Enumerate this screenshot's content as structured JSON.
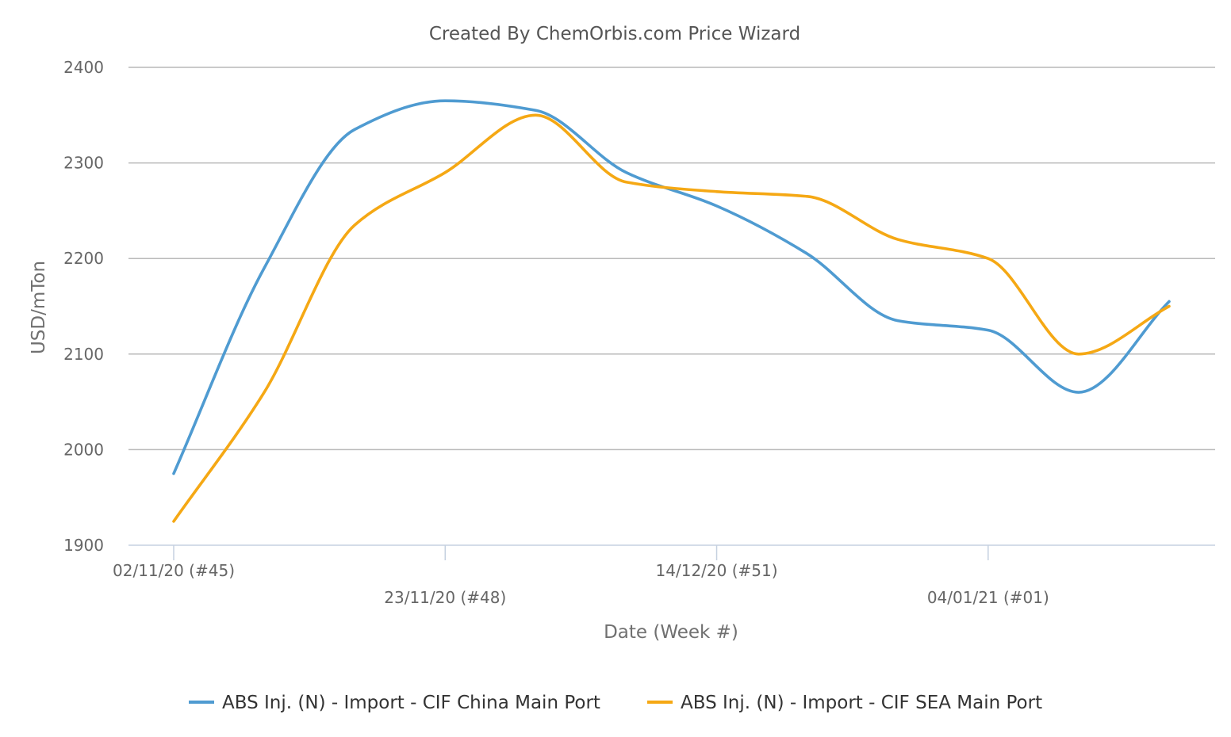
{
  "chart_data": {
    "type": "line",
    "title": "Created By ChemOrbis.com Price Wizard",
    "xlabel": "Date (Week #)",
    "ylabel": "USD/mTon",
    "ylim": [
      1900,
      2400
    ],
    "yticks": [
      1900,
      2000,
      2100,
      2200,
      2300,
      2400
    ],
    "grid": true,
    "legend": "bottom",
    "x": [
      "02/11/20",
      "09/11/20",
      "16/11/20",
      "23/11/20",
      "30/11/20",
      "07/12/20",
      "14/12/20",
      "21/12/20",
      "28/12/20",
      "04/01/21",
      "11/01/21",
      "18/01/21"
    ],
    "x_tick_labels": [
      {
        "x": "02/11/20",
        "label": "02/11/20 (#45)"
      },
      {
        "x": "23/11/20",
        "label": "23/11/20 (#48)"
      },
      {
        "x": "14/12/20",
        "label": "14/12/20 (#51)"
      },
      {
        "x": "04/01/21",
        "label": "04/01/21 (#01)"
      }
    ],
    "series": [
      {
        "name": "ABS Inj. (N) - Import - CIF China Main Port",
        "color": "#4f9bd1",
        "values": [
          1975,
          2190,
          2335,
          2365,
          2355,
          2290,
          2255,
          2205,
          2135,
          2125,
          2060,
          2155
        ]
      },
      {
        "name": "ABS Inj. (N) - Import - CIF SEA Main Port",
        "color": "#f5a814",
        "values": [
          1925,
          2060,
          2235,
          2290,
          2350,
          2280,
          2270,
          2265,
          2220,
          2200,
          2100,
          2150
        ]
      }
    ]
  }
}
